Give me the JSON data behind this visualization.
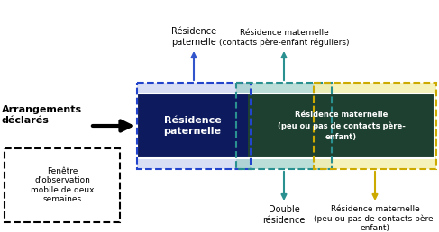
{
  "bg_color": "#ffffff",
  "arrow_blue_color": "#3355cc",
  "arrow_teal_color": "#2a9090",
  "arrow_yellow_color": "#ccaa00",
  "pat_label": "Résidence\npaternelle",
  "mat_reg_label": "Résidence maternelle\n(contacts père-enfant réguliers)",
  "pat_box_text": "Résidence\npaternelle",
  "mat_box_text": "Résidence maternelle\n(peu ou pas de contacts père-\nenfant)",
  "double_label": "Double\nrésidence",
  "mat_low_label": "Résidence maternelle\n(peu ou pas de contacts père-\nenfant)",
  "left_label_text": "Arrangements\ndéclarés",
  "window_box_text": "Fenêtre\nd'observation\nmobile de deux\nsemaines"
}
